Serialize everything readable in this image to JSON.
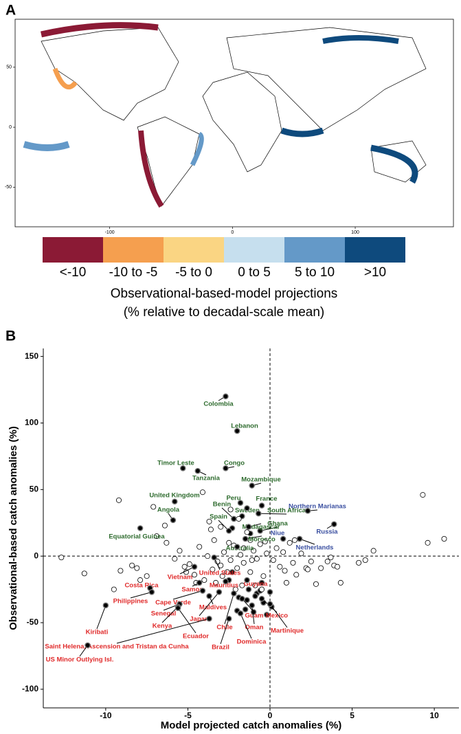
{
  "chart_data": [
    {
      "type": "map",
      "panel_label": "A",
      "xlim": [
        -177,
        180
      ],
      "ylim": [
        -83,
        90
      ],
      "xticks": [
        -100,
        0,
        100
      ],
      "yticks": [
        -50,
        0,
        50
      ],
      "legend": {
        "title": [
          "Observational-based-model projections",
          "(% relative to decadal-scale mean)"
        ],
        "categories": [
          "<-10",
          "-10 to -5",
          "-5  to 0",
          "0 to 5",
          "5 to 10",
          ">10"
        ],
        "colors": [
          "#8b1a35",
          "#f59f4f",
          "#fad583",
          "#c6dfee",
          "#6499c8",
          "#0e4a7d"
        ]
      }
    },
    {
      "type": "scatter",
      "panel_label": "B",
      "x_label": "Model projected catch anomalies (%)",
      "y_label": "Observational-based catch anomalies (%)",
      "xlim": [
        -13.8,
        11.5
      ],
      "ylim": [
        -114,
        156
      ],
      "xticks": [
        -10,
        -5,
        0,
        5,
        10
      ],
      "yticks": [
        -100,
        -50,
        0,
        50,
        100,
        150
      ],
      "reference_lines": {
        "x": 0,
        "y": 0
      },
      "series": [
        {
          "color": "#2e6b2e",
          "filled": true,
          "labels": [
            "Colombia",
            "Lebanon",
            "Timor Leste",
            "Tanzania",
            "Congo",
            "Mozambique",
            "Peru",
            "France",
            "Sweden",
            "South Africa",
            "United Kingdom",
            "Angola",
            "Benin",
            "Ghana",
            "Madagascar",
            "Spain",
            "Morocco",
            "Equatorial Guinea",
            "Australia"
          ],
          "x": [
            -2.7,
            -2.0,
            -5.3,
            -4.4,
            -2.7,
            -1.1,
            -1.8,
            -0.5,
            -1.4,
            -0.7,
            -5.8,
            -5.9,
            -2.2,
            -0.6,
            -1.3,
            -2.5,
            -1.5,
            -7.9,
            -2.0
          ],
          "y": [
            120,
            94,
            66,
            64,
            66,
            53,
            40,
            38,
            36,
            32,
            41,
            27,
            28,
            19,
            22,
            19,
            13,
            21,
            7
          ]
        },
        {
          "color": "#3a4fa0",
          "filled": true,
          "labels": [
            "Northern Marianas",
            "Niue",
            "Netherlands",
            "Russia"
          ],
          "x": [
            2.3,
            0.8,
            1.8,
            3.9
          ],
          "y": [
            34,
            13,
            13,
            24
          ]
        },
        {
          "color": "#e02a2a",
          "filled": true,
          "labels": [
            "Costa Rica",
            "Philippines",
            "Vietnam",
            "United States",
            "Samoa",
            "Mauritius",
            "Guyana",
            "Cape Verde",
            "Maldives",
            "Senegal",
            "Japan",
            "Kenya",
            "Ecuador",
            "Chile",
            "Guam",
            "Mexico",
            "Oman",
            "Martinique",
            "Dominica",
            "Brazil",
            "Saint Helena, Ascension and Tristan da Cunha",
            "US Minor Outlying Isl.",
            "Kiribati"
          ],
          "x": [
            -7.3,
            -7.2,
            -4.6,
            -3.4,
            -4.3,
            -2.7,
            -1.4,
            -4.1,
            -3.7,
            -5.5,
            -3.1,
            -5.6,
            -5.6,
            -2.2,
            -1.7,
            -0.5,
            -1.1,
            0,
            -1.8,
            -2.5,
            -3.7,
            -11.1,
            -10.0
          ],
          "y": [
            -24,
            -27,
            -8,
            -1,
            -20,
            -19,
            -18,
            -26,
            -30,
            -36,
            -27,
            -38,
            -39,
            -28,
            -32,
            -32,
            -37,
            -36,
            -43,
            -47,
            -47,
            -67,
            -37
          ]
        },
        {
          "color": "#000000",
          "filled": true,
          "x": [
            -1.7,
            -2.3,
            -1.2,
            -0.8,
            -1.3,
            -0.2,
            -0.6,
            -1.5,
            -2.0,
            0.0,
            1.8,
            -2.5,
            -0.4,
            -0.9,
            -1.0,
            -1.9,
            -2.3,
            -1.4,
            0.1,
            -0.5
          ],
          "y": [
            30,
            21,
            17,
            -28,
            -25,
            -44,
            -26,
            -40,
            -41,
            -27,
            13,
            -18,
            -35,
            -30,
            -42,
            -31,
            -12,
            -33,
            -38,
            -20
          ]
        },
        {
          "color": "#000000",
          "filled": false,
          "x": [
            -12.7,
            -11.3,
            -9.5,
            -9.1,
            -8.4,
            -7.5,
            -6.9,
            -6.3,
            -5.8,
            -5.5,
            -5.2,
            -4.9,
            -4.6,
            -4.3,
            -4.0,
            -3.8,
            -3.6,
            -3.4,
            -3.2,
            -3.0,
            -2.8,
            -2.6,
            -2.4,
            -2.2,
            -2.0,
            -1.8,
            -1.6,
            -1.4,
            -1.2,
            -1.0,
            -0.8,
            -0.6,
            -0.4,
            -0.2,
            0.2,
            0.4,
            0.6,
            0.8,
            1.0,
            1.2,
            1.4,
            1.6,
            1.9,
            2.2,
            2.5,
            2.8,
            3.1,
            3.5,
            3.7,
            3.9,
            4.1,
            4.3,
            5.4,
            5.8,
            6.3,
            9.3,
            9.6,
            10.6,
            -9.2,
            -7.1,
            -6.4,
            -4.1,
            -3.7,
            -3.0,
            -2.4,
            -1.9,
            -1.2,
            -0.5,
            -3.3,
            -2.1,
            -7.9,
            -8.1,
            0.9,
            1.5,
            2.3,
            -0.9,
            -1.7,
            -2.9,
            -4.5,
            -5.1,
            -1.1,
            -1.6,
            -2.5,
            -3.5,
            -0.3
          ],
          "y": [
            -1,
            -13,
            -25,
            -11,
            -7,
            -15,
            15,
            10,
            -2,
            4,
            -8,
            -6,
            -14,
            7,
            -18,
            0,
            20,
            12,
            -4,
            -7,
            3,
            -12,
            -3,
            8,
            -9,
            1,
            -5,
            18,
            -12,
            4,
            -2,
            9,
            -15,
            2,
            -3,
            6,
            -8,
            3,
            -20,
            10,
            -5,
            -14,
            2,
            -9,
            -4,
            -21,
            -9,
            -4,
            -1,
            -7,
            -8,
            -20,
            -5,
            -3,
            4,
            46,
            10,
            13,
            42,
            37,
            23,
            48,
            26,
            22,
            35,
            28,
            12,
            -25,
            -20,
            -25,
            -18,
            -9,
            -11,
            12,
            -10,
            -22,
            -22,
            -15,
            -20,
            -12,
            -3,
            6,
            10,
            -10,
            11
          ]
        }
      ]
    }
  ]
}
